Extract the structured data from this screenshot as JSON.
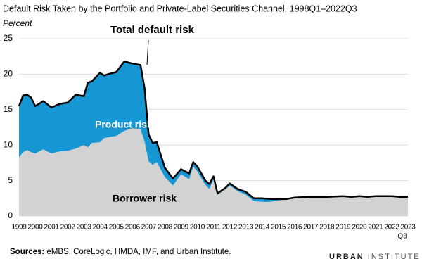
{
  "chart_data": {
    "type": "stacked_area",
    "title": "Default Risk Taken by the Portfolio and Private-Label Securities Channel, 1998Q1–2022Q3",
    "y_label": "Percent",
    "x_note": "Q3",
    "annotation": "Total default risk",
    "x": [
      1999,
      1999.25,
      1999.5,
      1999.75,
      2000,
      2000.5,
      2001,
      2001.5,
      2002,
      2002.5,
      2003,
      2003.25,
      2003.5,
      2004,
      2004.25,
      2004.5,
      2005,
      2005.5,
      2006,
      2006.5,
      2006.75,
      2007,
      2007.25,
      2007.5,
      2008,
      2008.5,
      2009,
      2009.5,
      2009.75,
      2010,
      2010.5,
      2010.75,
      2011,
      2011.25,
      2011.75,
      2012,
      2012.5,
      2013,
      2013.5,
      2014,
      2014.5,
      2015,
      2015.5,
      2016,
      2017,
      2018,
      2019,
      2019.5,
      2020,
      2020.5,
      2021,
      2021.5,
      2022,
      2022.5,
      2023
    ],
    "series": [
      {
        "name": "Borrower risk",
        "color": "#d2d2d2",
        "values": [
          8.3,
          9.0,
          9.3,
          9.0,
          8.8,
          9.4,
          8.8,
          9.1,
          9.2,
          9.5,
          10.0,
          9.7,
          10.3,
          10.4,
          11.0,
          11.1,
          11.3,
          12.0,
          12.4,
          12.2,
          10.5,
          7.7,
          7.2,
          7.6,
          5.5,
          4.3,
          5.9,
          5.2,
          7.0,
          6.3,
          4.4,
          3.8,
          5.2,
          3.0,
          3.8,
          4.3,
          3.5,
          3.0,
          2.1,
          2.0,
          2.0,
          2.2,
          2.3,
          2.5,
          2.6,
          2.6,
          2.7,
          2.6,
          2.7,
          2.6,
          2.7,
          2.7,
          2.7,
          2.6,
          2.6
        ]
      },
      {
        "name": "Product risk",
        "color": "#1696d2",
        "values": [
          7.2,
          8.0,
          7.8,
          7.7,
          6.7,
          6.8,
          6.5,
          6.7,
          6.8,
          7.6,
          6.9,
          9.1,
          8.7,
          9.8,
          8.8,
          8.9,
          9.0,
          9.8,
          9.1,
          9.1,
          7.5,
          3.8,
          3.1,
          2.8,
          1.3,
          1.0,
          0.7,
          0.8,
          0.6,
          0.7,
          0.6,
          0.7,
          0.4,
          0.2,
          0.2,
          0.3,
          0.3,
          0.4,
          0.4,
          0.5,
          0.4,
          0.2,
          0.1,
          0.1,
          0.1,
          0.1,
          0.1,
          0.1,
          0.1,
          0.1,
          0.1,
          0.1,
          0.1,
          0.1,
          0.1
        ]
      }
    ],
    "xlim": [
      1999,
      2023
    ],
    "xticks": [
      1999,
      2000,
      2001,
      2002,
      2003,
      2004,
      2005,
      2006,
      2007,
      2008,
      2009,
      2010,
      2011,
      2012,
      2013,
      2014,
      2015,
      2016,
      2017,
      2018,
      2019,
      2020,
      2021,
      2022,
      2023
    ],
    "ylim": [
      0,
      25
    ],
    "yticks": [
      0,
      5,
      10,
      15,
      20,
      25
    ],
    "grid": true,
    "sources_label": "Sources:",
    "sources": "eMBS, CoreLogic, HMDA, IMF, and Urban Institute.",
    "logo": [
      "URBAN",
      "INSTITUTE"
    ]
  }
}
